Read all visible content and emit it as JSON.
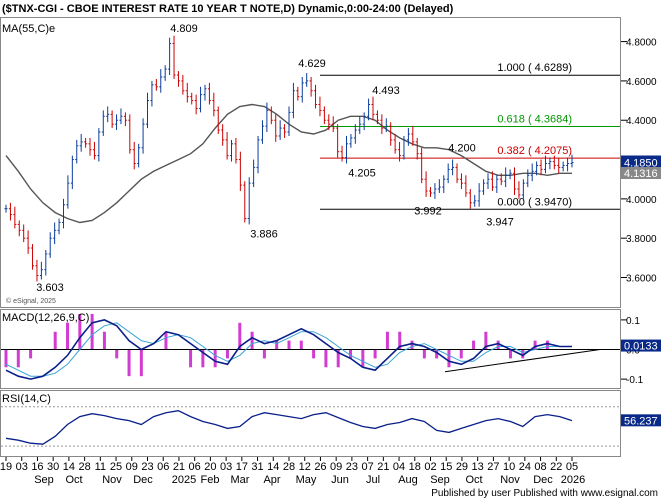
{
  "chart_data": {
    "type": "candlestick",
    "title": "($TNX-CGI - CBOE INTEREST RATE 10 YEAR T NOTE,D) Dynamic,0:00-24:00 (Delayed)",
    "indicator_label": "MA(55,C)e",
    "watermark": "© eSignal, 2025",
    "footer": "Published by user Published with www.esignal.com",
    "price_axis": {
      "ylim": [
        3.45,
        4.92
      ],
      "ticks": [
        "4.8000",
        "4.6000",
        "4.4000",
        "4.2000",
        "4.0000",
        "3.8000",
        "3.6000"
      ]
    },
    "last_price": "4.1850",
    "ma_value": "4.1316",
    "fib_levels": [
      {
        "label": "1.000 ( 4.6289)",
        "value": 4.6289,
        "color": "#000000"
      },
      {
        "label": "0.618 ( 4.3684)",
        "value": 4.3684,
        "color": "#009900"
      },
      {
        "label": "0.382 ( 4.2075)",
        "value": 4.2075,
        "color": "#cc0000"
      },
      {
        "label": "0.000 ( 3.9470)",
        "value": 3.947,
        "color": "#000000"
      }
    ],
    "annotations": [
      {
        "text": "4.809",
        "value": 4.809
      },
      {
        "text": "4.629",
        "value": 4.629
      },
      {
        "text": "4.493",
        "value": 4.493
      },
      {
        "text": "4.205",
        "value": 4.205
      },
      {
        "text": "4.200",
        "value": 4.2
      },
      {
        "text": "3.992",
        "value": 3.992
      },
      {
        "text": "3.947",
        "value": 3.947
      },
      {
        "text": "3.886",
        "value": 3.886
      },
      {
        "text": "3.603",
        "value": 3.603
      }
    ],
    "price_series": [
      3.95,
      3.92,
      3.87,
      3.84,
      3.8,
      3.75,
      3.66,
      3.61,
      3.64,
      3.72,
      3.8,
      3.84,
      3.88,
      3.97,
      4.08,
      4.2,
      4.27,
      4.29,
      4.28,
      4.25,
      4.22,
      4.34,
      4.42,
      4.43,
      4.38,
      4.4,
      4.42,
      4.4,
      4.25,
      4.18,
      4.26,
      4.38,
      4.5,
      4.58,
      4.57,
      4.62,
      4.66,
      4.79,
      4.63,
      4.6,
      4.55,
      4.52,
      4.5,
      4.46,
      4.53,
      4.56,
      4.5,
      4.45,
      4.35,
      4.3,
      4.22,
      4.28,
      4.2,
      4.07,
      3.9,
      4.08,
      4.16,
      4.3,
      4.37,
      4.45,
      4.4,
      4.32,
      4.36,
      4.34,
      4.44,
      4.55,
      4.52,
      4.59,
      4.6,
      4.55,
      4.48,
      4.45,
      4.4,
      4.38,
      4.36,
      4.24,
      4.21,
      4.28,
      4.31,
      4.35,
      4.38,
      4.42,
      4.48,
      4.43,
      4.4,
      4.36,
      4.37,
      4.3,
      4.25,
      4.22,
      4.3,
      4.33,
      4.29,
      4.23,
      4.1,
      4.04,
      4.03,
      4.05,
      4.06,
      4.1,
      4.15,
      4.16,
      4.1,
      4.08,
      4.03,
      3.98,
      3.99,
      4.04,
      4.08,
      4.1,
      4.06,
      4.1,
      4.09,
      4.12,
      4.13,
      4.05,
      4.02,
      4.08,
      4.12,
      4.14,
      4.17,
      4.15,
      4.18,
      4.19,
      4.17,
      4.16,
      4.17,
      4.18,
      4.185
    ],
    "ma_series": [
      4.22,
      4.14,
      4.05,
      3.98,
      3.93,
      3.9,
      3.88,
      3.89,
      3.93,
      3.98,
      4.04,
      4.1,
      4.14,
      4.17,
      4.2,
      4.23,
      4.28,
      4.36,
      4.43,
      4.47,
      4.48,
      4.47,
      4.43,
      4.38,
      4.34,
      4.33,
      4.35,
      4.4,
      4.42,
      4.42,
      4.4,
      4.35,
      4.31,
      4.28,
      4.26,
      4.26,
      4.25,
      4.22,
      4.18,
      4.14,
      4.12,
      4.12,
      4.13,
      4.13,
      4.12,
      4.13,
      4.13
    ],
    "x_ticks": [
      "19",
      "03",
      "16",
      "30",
      "14",
      "28",
      "11",
      "25",
      "09",
      "23",
      "06",
      "21",
      "06",
      "20",
      "03",
      "17",
      "31",
      "14",
      "28",
      "12",
      "26",
      "09",
      "23",
      "07",
      "21",
      "04",
      "18",
      "02",
      "15",
      "29",
      "13",
      "27",
      "10",
      "24",
      "08",
      "22",
      "05"
    ],
    "month_labels": [
      "Sep",
      "Oct",
      "Nov",
      "Dec",
      "2025",
      "Feb",
      "Mar",
      "Apr",
      "May",
      "Jun",
      "Jul",
      "Aug",
      "Sep",
      "Oct",
      "Nov",
      "Dec",
      "2026"
    ],
    "macd": {
      "label": "MACD(12,26,9,C)",
      "value": "0.0133",
      "ticks": [
        "0.1",
        "0.0",
        "-0.1"
      ],
      "ylim": [
        -0.13,
        0.13
      ],
      "line": [
        -0.07,
        -0.09,
        -0.1,
        -0.09,
        -0.06,
        -0.02,
        0.04,
        0.09,
        0.1,
        0.08,
        0.03,
        0.0,
        0.02,
        0.06,
        0.05,
        0.02,
        -0.01,
        -0.04,
        -0.05,
        0.01,
        0.04,
        0.02,
        0.03,
        0.05,
        0.07,
        0.05,
        0.02,
        -0.01,
        -0.03,
        -0.06,
        -0.07,
        -0.03,
        0.01,
        0.02,
        0.01,
        -0.01,
        -0.04,
        -0.05,
        -0.03,
        0.01,
        0.02,
        0.0,
        -0.02,
        0.01,
        0.02,
        0.01,
        0.01
      ],
      "signal": [
        -0.05,
        -0.07,
        -0.09,
        -0.09,
        -0.08,
        -0.05,
        0.0,
        0.05,
        0.08,
        0.09,
        0.06,
        0.03,
        0.02,
        0.04,
        0.05,
        0.04,
        0.01,
        -0.02,
        -0.04,
        -0.02,
        0.02,
        0.03,
        0.02,
        0.04,
        0.06,
        0.06,
        0.04,
        0.01,
        -0.02,
        -0.04,
        -0.06,
        -0.05,
        -0.01,
        0.01,
        0.02,
        0.0,
        -0.02,
        -0.04,
        -0.04,
        -0.01,
        0.01,
        0.01,
        -0.01,
        0.0,
        0.01,
        0.01,
        0.01
      ]
    },
    "rsi": {
      "label": "RSI(14,C)",
      "value": "56.237",
      "ylim": [
        20,
        85
      ],
      "series": [
        38,
        36,
        33,
        32,
        40,
        52,
        60,
        63,
        61,
        58,
        56,
        52,
        60,
        64,
        66,
        60,
        55,
        52,
        48,
        50,
        60,
        64,
        62,
        60,
        58,
        62,
        64,
        59,
        54,
        50,
        48,
        52,
        54,
        58,
        55,
        46,
        44,
        48,
        52,
        56,
        58,
        55,
        50,
        60,
        62,
        60,
        56
      ]
    }
  }
}
